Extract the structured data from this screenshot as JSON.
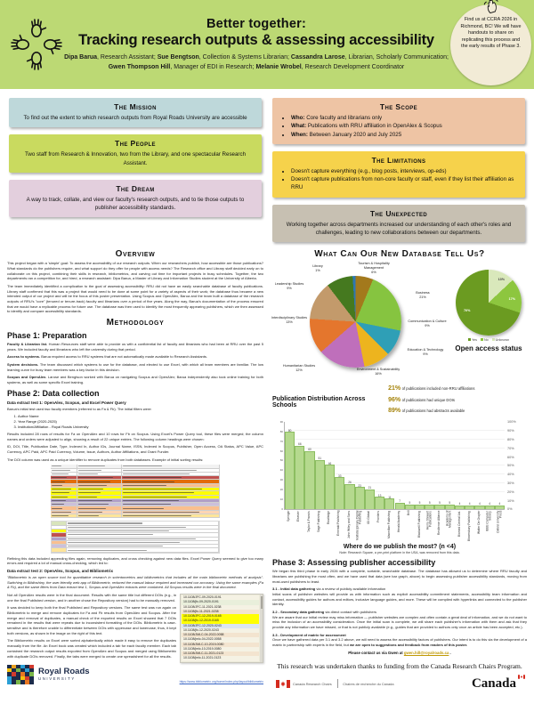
{
  "header": {
    "title_line1": "Better together:",
    "title_line2": "Tracking research outputs & assessing accessibility",
    "authors": [
      {
        "name": "Dipa Barua",
        "rest": ", Research Assistant; "
      },
      {
        "name": "Sue Bengtson",
        "rest": ", Collection & Systems Librarian; "
      },
      {
        "name": "Cassandra Larose",
        "rest": ", Librarian, Scholarly Communication; "
      },
      {
        "name": "Gwen Thompson Hill",
        "rest": ", Manager of EDI in Research; "
      },
      {
        "name": "Melanie Wrobel",
        "rest": ", Research Development Coordinator"
      }
    ],
    "badge_text": "Find us at CCRA 2026 in Richmond, BC! We will have handouts to share on replicating this process and the early results of Phase 3.",
    "header_color": "#bcd974",
    "badge_color": "#f2ebd6"
  },
  "info_boxes": {
    "mission": {
      "title": "The Mission",
      "body": "To find out the extent to which research outputs from Royal Roads University are accessible",
      "color": "#bed8da"
    },
    "people": {
      "title": "The People",
      "body": "Two staff from Research & Innovation, two from the Library, and one spectacular Research Assistant.",
      "color": "#c9da5f"
    },
    "dream": {
      "title": "The Dream",
      "body": "A way to track, collate, and view our faculty's research outputs, and to tie those outputs to publisher accessibility standards.",
      "color": "#e3cfdd"
    },
    "scope": {
      "title": "The Scope",
      "color": "#eec4a4",
      "bullets": [
        {
          "label": "Who:",
          "text": " Core faculty and librarians only"
        },
        {
          "label": "What:",
          "text": " Publications with RRU affiliation in OpenAlex & Scopus"
        },
        {
          "label": "When:",
          "text": " Between January 2020 and July 2025"
        }
      ]
    },
    "limitations": {
      "title": "The Limitations",
      "color": "#f6d24b",
      "bullets": [
        "Doesn't capture everything (e.g., blog posts, interviews, op-eds)",
        "Doesn't capture publications from non-core faculty or staff, even if they list their affiliation as RRU"
      ]
    },
    "unexpected": {
      "title": "The Unexpected",
      "body": "Working together across departments increased our understanding of each other's roles and challenges, leading to new collaborations between our departments.",
      "color": "#c7c0b2"
    }
  },
  "overview": {
    "heading": "Overview",
    "p1": "This project began with a 'simple' goal: To assess the accessibility of our research outputs. When our researchers publish, how accessible are those publications? What standards do the publishers require, and what support do they offer for people with access needs? The Research office and Library staff decided early on to collaborate on this project, combining their skills in research, bibliometrics, and carving out time for important projects in busy schedules. Together, the two departments ran a competition for, and hired, a research assistant: Dipa Barua, a Master of Library and Information Studies student at the University of Alberta.",
    "p2": "The team immediately identified a complication to the goal of assessing accessibility: RRU did not have an easily searchable database of faculty publications. Library staff confirmed that this was a project that would need to be done at some point for a variety of aspects of their work; the database thus became a new intended output of our project and will be the focus of this poster presentation. Using Scopus and OpenAlex, Barua and the team built a database of the research outputs of RRU's \"core\" (tenured or tenure-track) faculty and librarians over a period of five years. Along the way, Barua's documentation of the process ensured that we would have a replicable process for future use. The database was then used to identify the most frequently appearing publishers, which we then assessed to identify and compare accessibility standards."
  },
  "methodology": {
    "heading": "Methodology",
    "phase1": {
      "heading": "Phase 1: Preparation",
      "items": [
        {
          "lead": "Faculty & Librarian list.",
          "text": " Human Resources staff were able to provide us with a confidential list of faculty and librarians who had been at RRU over the past 5 years. We included faculty and librarians who left the university during that period."
        },
        {
          "lead": "Access to systems.",
          "text": " Barua required access to RRU systems that are not automatically made available to Research Assistants."
        },
        {
          "lead": "System decisions.",
          "text": " The team discussed which systems to use for the database, and elected to use Excel, with which all team members are familiar. The low learning curve for busy team members was a key factor in this decision."
        },
        {
          "lead": "Scopus and OpenAlex.",
          "text": " Larose and Bengtson worked with Barua on navigating Scopus and OpenAlex; Barua independently also took online training for both systems, as well as some specific Excel training."
        }
      ]
    },
    "phase2": {
      "heading": "Phase 2: Data collection",
      "test1_heading": "Data extract test 1: OpenAlex, Scopus, and Excel Power Query",
      "test1_intro": "Barua's initial test used two faculty members (referred to as Fa & Fb). The initial filters were:",
      "filters": [
        "Author Name",
        "Year Range (2020-2025)",
        "Institution/Affiliation - Royal Roads University"
      ],
      "test1_results": "Results included 28 rows of results for Fa on OpenAlex and 10 rows for Fb on Scopus. Using Excel's Power Query tool, these files were merged; the column names and orders were adjusted to align, showing a result of 22 unique entries. The following column headings were chosen:",
      "columns_text": "ID, DOI, Title, Publication Date, Type, Indexed In, Author IDs, Journal Name, ISSN, Indexed in Scopus, Publisher, Open Access, OA Status, APC Value, APC Currency, APC Paid, APC Paid Currency, Volume, Issue, Authors, Author Affiliations, and Grant Funder.",
      "doi_note": "The DOI column was used as a unique identifier to remove duplicates from both databases. Example of initial sorting results:",
      "refining": "Refining this data included appending files again, removing duplicates, and cross checking against new data files. Excel Power Query seemed to give too many errors and required a lot of manual cross-checking, which led to:",
      "test2_heading": "Data extract test 2: OpenAlex, Scopus, and Bibliometrix",
      "test2_quote": "\"Bibliometrix is an open source tool for quantitative research in scientometrics and bibliometrics that includes all the main bibliometric methods of analysis\". Switching to Biblioshiny, the user-friendly web app of Bibliometrix, reduced the manual labour required and increased our accuracy. Using the same examples (Fa & Fb), and the same filters from Data extract test 1, Scopus and OpenAlex extracts were combined. All Scopus results were in the final document.",
      "test2_p1": "Not all OpenAlex results were in the final document. Results with the same title but different DOIs (e.g., in one the final Published version, and in another chose the Repository version) had to be manually removed.",
      "test2_p2": "It was decided to keep both the final Published and Repository versions. The same test was run again on Bibliometrix to merge and remove duplicates for Fa and Fb results from OpenAlex and Scopus. After the merge and removal of duplicates, a manual check of the exported results on Excel showed that 7 DOIs remained in the results that were repeats due to inconsistent formatting of the DOIs. Bibliometrix is case-sensitive and is therefore unable to differentiate between DOIs with uppercase and lowercase, thus, it kept both versions, as shown in the image on the right of this text.",
      "test2_p3": "The Bibliometrix results on Excel were sorted alphabetically which made it easy to remove the duplicates manually from the file. An Excel book was created which included a tab for each faculty member. Each tab contained the research output results exported from OpenAlex and Scopus and merged using Bibliometrix with duplicate DOIs removed. Finally, the tabs were merged to create one spreadsheet for all the results."
    },
    "phase3": {
      "heading": "Phase 3: Assessing publisher accessibility",
      "intro": "We began this third phase in early 2026 with a complete, sortable, searchable database. The database has allowed us to determine where RRU faculty and librarians are publishing the most often, and we have used that data (see bar graph, above) to begin assessing publisher accessibility standards, moving from most-used publishers to least.",
      "s1_head": "3.1 - Initial data gathering",
      "s1_head_rest": " via a review of publicly available information",
      "s1_body": "Initial scans of publisher websites will provide us with information such as explicit accessibility commitment statements, accessibility team information and contact, accessibility guides for authors and editors, inclusive language guides, and more. These will be compiled with hyperlinks and connected to the publisher identity.",
      "s2_head": "3.2 - Secondary data gathering",
      "s2_head_rest": " via direct contact with publishers",
      "s2_body": "We are aware that our initial review may miss information — publisher websites are complex and often contain a great deal of information, and we do not want to miss the inclusion of an accessibility consideration. Once the initial scan is complete, we will share each publisher's information with them and ask that they provide any information we have missed, or that is not publicly available (e.g., guides that are provided to authors only once an article has been accepted, etc.).",
      "s3_head": "3.3 - Development of matrix for assessment",
      "s3_head_rest": "",
      "s3_body": "Once we have gathered data per 3.1 and 3.2 above, we will need to assess the accessibility factors of publishers. Our intent is to do this via the development of a matrix in partnership with experts in the field, but ",
      "s3_body_bold": "we are open to suggestions and feedback from readers of this poster.",
      "contact_prefix": "Please contact us via Gwen at ",
      "contact_link": "gwen.hill@royalroads.ca",
      "contact_suffix": " ."
    }
  },
  "database_section": {
    "heading": "What Can Our New Database Tell Us?",
    "schools_chart_title": "Publication Distribution Across Schools",
    "stats": [
      {
        "pct": "21%",
        "text": "of publications included non-RRU affiliations"
      },
      {
        "pct": "96%",
        "text": "of publications had unique DOIs"
      },
      {
        "pct": "89%",
        "text": "of publications had abstracts available"
      }
    ]
  },
  "chart_data": [
    {
      "type": "pie",
      "title": "Publication Distribution Across Schools",
      "slices": [
        {
          "label": "Tourism & Hospitality Management",
          "pct": 6,
          "color": "#a3791c"
        },
        {
          "label": "Business",
          "pct": 21,
          "color": "#86c440"
        },
        {
          "label": "Communication & Culture",
          "pct": 9,
          "color": "#2f9fb6"
        },
        {
          "label": "Education & Technology",
          "pct": 9,
          "color": "#edb41e"
        },
        {
          "label": "Environment & Sustainability",
          "pct": 16,
          "color": "#bf6fbb"
        },
        {
          "label": "Humanitarian Studies",
          "pct": 12,
          "color": "#e4762d"
        },
        {
          "label": "Interdisciplinary Studies",
          "pct": 13,
          "color": "#c39a6b"
        },
        {
          "label": "Leadership Studies",
          "pct": 9,
          "color": "#45791f"
        },
        {
          "label": "Library",
          "pct": 1,
          "color": "#2e77b2"
        }
      ]
    },
    {
      "type": "pie",
      "title": "Open access status",
      "legend_position": "bottom",
      "slices": [
        {
          "label": "Yes",
          "pct": 70,
          "color": "#6b9b21"
        },
        {
          "label": "No",
          "pct": 17,
          "color": "#8dc63f"
        },
        {
          "label": "Unknown",
          "pct": 13,
          "color": "#d9e8bb"
        }
      ]
    },
    {
      "type": "bar",
      "title": "Where do we publish the most? (n <4)",
      "note": "Note: Research Square, a pre-print platform in the USA, was removed from this data.",
      "bar_color": "#b5d98e",
      "bar_border": "#8cbd61",
      "ylim": [
        0,
        90
      ],
      "right_axis_ticks": [
        "0%",
        "10%",
        "20%",
        "30%",
        "40%",
        "50%",
        "60%",
        "70%",
        "80%",
        "90%",
        "100%"
      ],
      "categories": [
        "Springer",
        "Elsevier",
        "Taylor & Francis",
        "Sage Publishing",
        "Routledge",
        "Emerald Publishing",
        "John Wiley and Sons",
        "Multidisciplinary Digital Publishing",
        "IGI Global",
        "Frontiers",
        "Macmillan Publishing",
        "Herald Academy",
        "Brill",
        "Blackwell Publishing",
        "Henry Stewart Publications",
        "Resilience Alliance",
        "Academy of Management",
        "Biomed Central Ltd.",
        "Bloomsbury Publishing",
        "Walter De Gruyter",
        "IEEE Computer Society",
        "Oxford University Press"
      ],
      "values": [
        80,
        66,
        60,
        51,
        46,
        33,
        26,
        23,
        21,
        13,
        11,
        7,
        5,
        5,
        5,
        5,
        5,
        4,
        4,
        4,
        4,
        4
      ]
    }
  ],
  "doi_panel": {
    "rows": [
      {
        "t": "10.1108/JFC-09-2020-0191",
        "bg": "#f5f2e4"
      },
      {
        "t": "10.1108/jfc-09-2020-0191",
        "bg": "#e9efdb"
      },
      {
        "t": "10.1108/JFC-11-2021-0238",
        "bg": "#f5f2e4"
      },
      {
        "t": "10.1108/jfc-11-2021-0238",
        "bg": "#f3e4cf"
      },
      {
        "t": "10.1108/JFC-12-2019-0165",
        "bg": "#ffff00"
      },
      {
        "t": "10.1108/jfc-12-2019-0165",
        "bg": "#ffff00"
      },
      {
        "t": "10.1108/JFC-12-2020-0243",
        "bg": "#dce6f1"
      },
      {
        "t": "10.1108/jfc-12-2020-0243",
        "bg": "#f5f2e4"
      },
      {
        "t": "10.1108/JMLC-04-2022-0058",
        "bg": "#f3e4cf"
      },
      {
        "t": "10.1108/jmlc-04-2022-0058",
        "bg": "#f5f2e4"
      },
      {
        "t": "10.1108/JMLC-10-2019-0080",
        "bg": "#f3e4cf"
      },
      {
        "t": "10.1108/jmlc-10-2019-0080",
        "bg": "#f5f2e4"
      },
      {
        "t": "10.1108/JMLC-11-2021-0123",
        "bg": "#f3e4cf"
      },
      {
        "t": "10.1108/jmlc-11-2021-0123",
        "bg": "#f5f2e4"
      }
    ]
  },
  "spreadsheet_mock": {
    "row_colors": [
      "#f2f2f2",
      "#ffffff",
      "#ffffff",
      "#c0504d",
      "#e36c09",
      "#fabf8f",
      "#ffff00",
      "#ffff00",
      "#ffff00",
      "#b1a0c7",
      "#ccc0da",
      "#fabf8f",
      "#fcd5b4",
      "#ffe599"
    ],
    "legend_colors": [
      "#d8e4bc",
      "#ffffff",
      "#ffff00",
      "#c0504d",
      "#b1a0c7",
      "#fabf8f",
      "#ccc0da",
      "#ffe599"
    ]
  },
  "footer_left": {
    "name": "Royal Roads",
    "university": "UNIVERSITY",
    "link": "https://www.bibliometrix.org/home/index.php/layout/bibliometrix",
    "brand_navy": "#1c2b4a",
    "logo_mosaic": [
      "#1c2b4a",
      "#e8a020",
      "#1c2b4a",
      "#2a9fd6",
      "#1c2b4a",
      "#d23b2f",
      "#f4c20d",
      "#1c2b4a",
      "#7ab648",
      "#1c2b4a",
      "#2a9fd6",
      "#1c2b4a",
      "#1c2b4a",
      "#d23b2f",
      "#1c2b4a",
      "#e87722",
      "#1c2b4a",
      "#7ab648",
      "#2a9fd6",
      "#1c2b4a",
      "#1c2b4a",
      "#f4c20d",
      "#d23b2f",
      "#1c2b4a",
      "#2a9fd6",
      "#1c2b4a",
      "#7ab648",
      "#1c2b4a",
      "#e87722",
      "#1c2b4a"
    ]
  },
  "footer_right": {
    "funding_text": "This research was undertaken thanks to funding from the Canada Research Chairs Program.",
    "crc_en": "Canada Research Chairs",
    "crc_fr": "Chaires de recherche du Canada",
    "wordmark": "Canada"
  }
}
